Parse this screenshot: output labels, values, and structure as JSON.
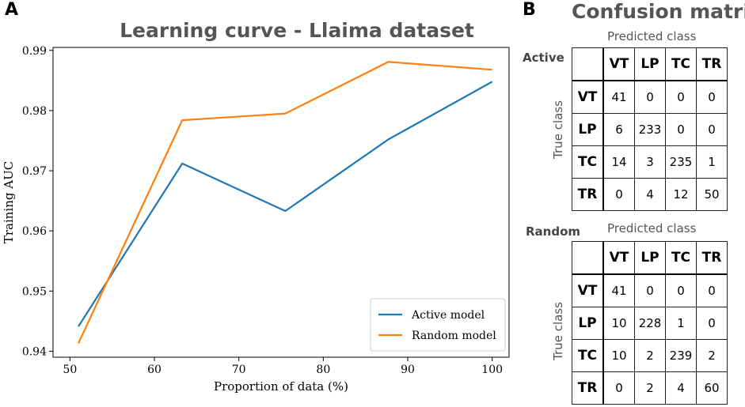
{
  "panel_a": {
    "letter": "A"
  },
  "panel_b": {
    "letter": "B",
    "title": "Confusion matrix"
  },
  "chart_data": {
    "type": "line",
    "title": "Learning curve - Llaima dataset",
    "xlabel": "Proportion of data (%)",
    "ylabel": "Training AUC",
    "xlim": [
      48,
      102
    ],
    "ylim": [
      0.939,
      0.9905
    ],
    "xticks": [
      50,
      60,
      70,
      80,
      90,
      100
    ],
    "yticks": [
      0.94,
      0.95,
      0.96,
      0.97,
      0.98,
      0.99
    ],
    "ytick_labels": [
      "0.94",
      "0.95",
      "0.96",
      "0.97",
      "0.98",
      "0.99"
    ],
    "x": [
      51,
      63.3,
      75.5,
      87.7,
      100
    ],
    "series": [
      {
        "name": "Active model",
        "color": "#1f77b4",
        "values": [
          0.9441,
          0.9712,
          0.9633,
          0.9752,
          0.9848
        ]
      },
      {
        "name": "Random model",
        "color": "#ff7f0e",
        "values": [
          0.9413,
          0.9784,
          0.9795,
          0.9881,
          0.9868
        ]
      }
    ],
    "legend": "bottom-right"
  },
  "confusion": {
    "predicted_label": "Predicted class",
    "true_label": "True class",
    "classes": [
      "VT",
      "LP",
      "TC",
      "TR"
    ],
    "active": {
      "label": "Active",
      "rows": [
        [
          "41",
          "0",
          "0",
          "0"
        ],
        [
          "6",
          "233",
          "0",
          "0"
        ],
        [
          "14",
          "3",
          "235",
          "1"
        ],
        [
          "0",
          "4",
          "12",
          "50"
        ]
      ]
    },
    "random": {
      "label": "Random",
      "rows": [
        [
          "41",
          "0",
          "0",
          "0"
        ],
        [
          "10",
          "228",
          "1",
          "0"
        ],
        [
          "10",
          "2",
          "239",
          "2"
        ],
        [
          "0",
          "2",
          "4",
          "60"
        ]
      ]
    }
  }
}
